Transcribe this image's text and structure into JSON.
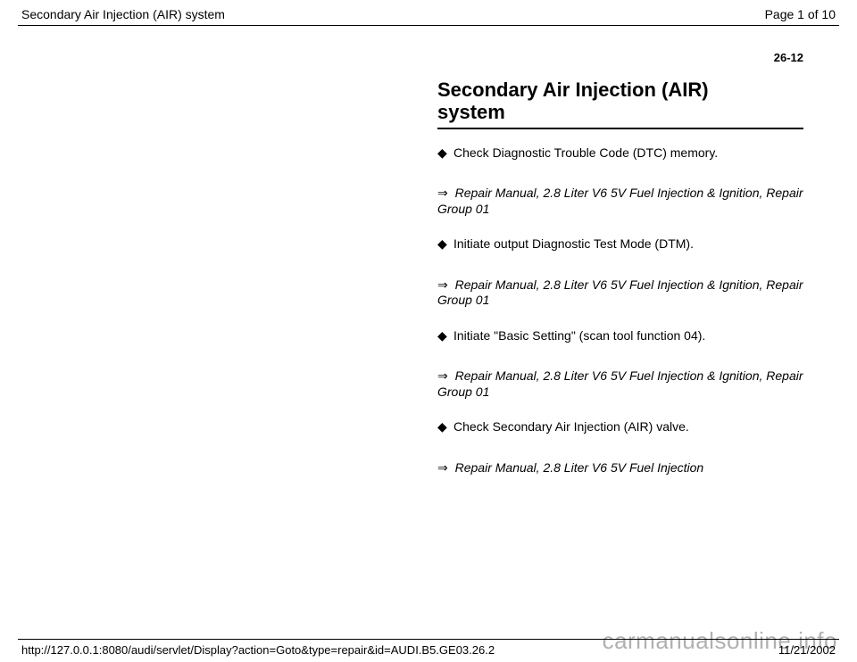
{
  "header": {
    "title": "Secondary Air Injection (AIR) system",
    "pageInfo": "Page 1 of 10"
  },
  "topPageNumber": "26-12",
  "main": {
    "titleLine1": "Secondary Air Injection (AIR)",
    "titleLine2": "system",
    "items": [
      {
        "kind": "step",
        "text": "Check Diagnostic Trouble Code (DTC) memory."
      },
      {
        "kind": "ref",
        "text": " Repair Manual, 2.8 Liter V6 5V Fuel Injection & Ignition, Repair Group 01"
      },
      {
        "kind": "step",
        "text": "Initiate output Diagnostic Test Mode (DTM)."
      },
      {
        "kind": "ref",
        "text": " Repair Manual, 2.8 Liter V6 5V Fuel Injection & Ignition, Repair Group 01"
      },
      {
        "kind": "step",
        "text": "Initiate \"Basic Setting\" (scan tool function 04)."
      },
      {
        "kind": "ref",
        "text": " Repair Manual, 2.8 Liter V6 5V Fuel Injection & Ignition, Repair Group 01"
      },
      {
        "kind": "step",
        "text": "Check Secondary Air Injection (AIR) valve."
      },
      {
        "kind": "ref",
        "text": " Repair Manual, 2.8 Liter V6 5V Fuel Injection"
      }
    ]
  },
  "footer": {
    "url": "http://127.0.0.1:8080/audi/servlet/Display?action=Goto&type=repair&id=AUDI.B5.GE03.26.2",
    "date": "11/21/2002"
  },
  "watermark": "carmanualsonline.info",
  "glyphs": {
    "diamond": "◆",
    "arrow": "⇒"
  },
  "colors": {
    "text": "#000000",
    "background": "#ffffff",
    "watermark": "rgba(80,80,80,0.45)"
  }
}
